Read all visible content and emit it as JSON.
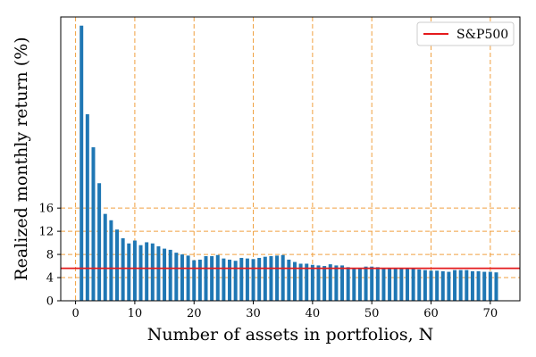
{
  "chart_data": {
    "type": "bar",
    "title": "",
    "xlabel": "Number of assets in portfolios, N",
    "ylabel": "Realized monthly return (%)",
    "xlim": [
      -2.5,
      75
    ],
    "ylim": [
      0,
      49
    ],
    "xticks": [
      "0",
      "10",
      "20",
      "30",
      "40",
      "50",
      "60",
      "70"
    ],
    "yticks": [
      "0",
      "4",
      "8",
      "12",
      "16"
    ],
    "grid": true,
    "legend_position": "top-right",
    "bar_color": "#1f77b4",
    "grid_color": "#f0a040",
    "reference_line": {
      "name": "S&P500",
      "value": 5.6,
      "color": "#e41a1c"
    },
    "x": [
      1,
      2,
      3,
      4,
      5,
      6,
      7,
      8,
      9,
      10,
      11,
      12,
      13,
      14,
      15,
      16,
      17,
      18,
      19,
      20,
      21,
      22,
      23,
      24,
      25,
      26,
      27,
      28,
      29,
      30,
      31,
      32,
      33,
      34,
      35,
      36,
      37,
      38,
      39,
      40,
      41,
      42,
      43,
      44,
      45,
      46,
      47,
      48,
      49,
      50,
      51,
      52,
      53,
      54,
      55,
      56,
      57,
      58,
      59,
      60,
      61,
      62,
      63,
      64,
      65,
      66,
      67,
      68,
      69,
      70,
      71
    ],
    "values": [
      47.5,
      32.2,
      26.5,
      20.3,
      15.0,
      13.9,
      12.3,
      10.8,
      9.9,
      10.4,
      9.6,
      10.1,
      9.9,
      9.4,
      9.0,
      8.8,
      8.3,
      8.0,
      7.8,
      7.0,
      7.1,
      7.7,
      7.7,
      7.9,
      7.3,
      7.1,
      6.9,
      7.4,
      7.3,
      7.2,
      7.4,
      7.6,
      7.7,
      7.8,
      7.9,
      7.1,
      6.7,
      6.4,
      6.4,
      6.2,
      6.1,
      6.0,
      6.3,
      6.1,
      6.1,
      5.8,
      5.7,
      5.6,
      5.9,
      5.9,
      5.8,
      5.7,
      5.6,
      5.6,
      5.5,
      5.5,
      5.5,
      5.4,
      5.3,
      5.2,
      5.2,
      5.1,
      5.0,
      5.3,
      5.3,
      5.3,
      5.1,
      5.1,
      5.0,
      5.0,
      4.9
    ]
  }
}
